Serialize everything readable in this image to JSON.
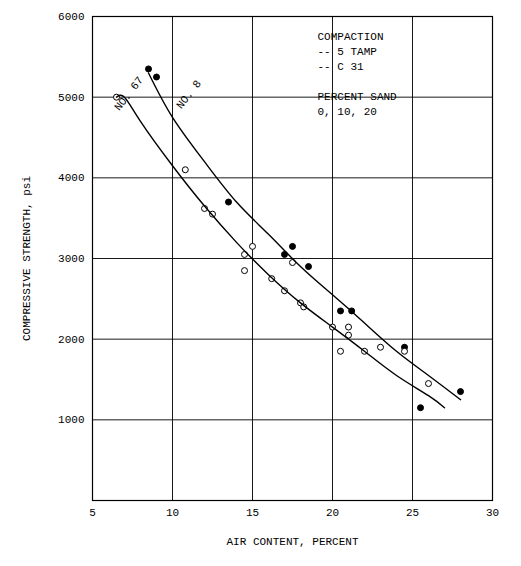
{
  "chart_data": {
    "type": "scatter",
    "xlabel": "AIR CONTENT, PERCENT",
    "ylabel": "COMPRESSIVE STRENGTH, psi",
    "xlim": [
      5,
      30
    ],
    "ylim": [
      0,
      6000
    ],
    "xticks": [
      5,
      10,
      15,
      20,
      25,
      30
    ],
    "yticks": [
      1000,
      2000,
      3000,
      4000,
      5000,
      6000
    ],
    "grid": true,
    "legend": "top-right",
    "annotations": [
      "COMPACTION",
      "PERCENT SAND",
      "0, 10, 20"
    ],
    "series": [
      {
        "name": "-- 5 TAMP",
        "type": "scatter",
        "marker": "filled circle",
        "color": "#000000",
        "x": [
          8.5,
          9.0,
          13.5,
          17.0,
          17.5,
          18.5,
          20.5,
          21.2,
          24.5,
          25.5,
          28.0
        ],
        "values": [
          5350,
          5250,
          3700,
          3050,
          3150,
          2900,
          2350,
          2350,
          1900,
          1150,
          1350
        ]
      },
      {
        "name": "-- C 31",
        "type": "scatter",
        "marker": "open circle",
        "color": "#000000",
        "x": [
          6.5,
          10.8,
          12.0,
          12.5,
          14.5,
          14.5,
          15.0,
          16.2,
          17.0,
          17.5,
          18.0,
          18.2,
          20.0,
          20.5,
          21.0,
          21.0,
          22.0,
          23.0,
          24.5,
          26.0
        ],
        "values": [
          5000,
          4100,
          3620,
          3550,
          3050,
          2850,
          3150,
          2750,
          2600,
          2950,
          2450,
          2400,
          2150,
          1850,
          2050,
          2150,
          1850,
          1900,
          1850,
          1450
        ]
      },
      {
        "name": "NO. 8",
        "type": "line",
        "line_style": "solid",
        "color": "#000000",
        "x": [
          8.5,
          10,
          12,
          14,
          16,
          18,
          20,
          22,
          24,
          26,
          28
        ],
        "values": [
          5300,
          4750,
          4200,
          3700,
          3300,
          2900,
          2550,
          2200,
          1850,
          1550,
          1250
        ]
      },
      {
        "name": "NO. 67",
        "type": "line",
        "line_style": "solid",
        "color": "#000000",
        "x": [
          6.5,
          7,
          8,
          10,
          12,
          14,
          16,
          18,
          20,
          22,
          24,
          26,
          27
        ],
        "values": [
          5000,
          5000,
          4700,
          4150,
          3650,
          3200,
          2800,
          2450,
          2150,
          1850,
          1550,
          1300,
          1150
        ]
      }
    ]
  }
}
